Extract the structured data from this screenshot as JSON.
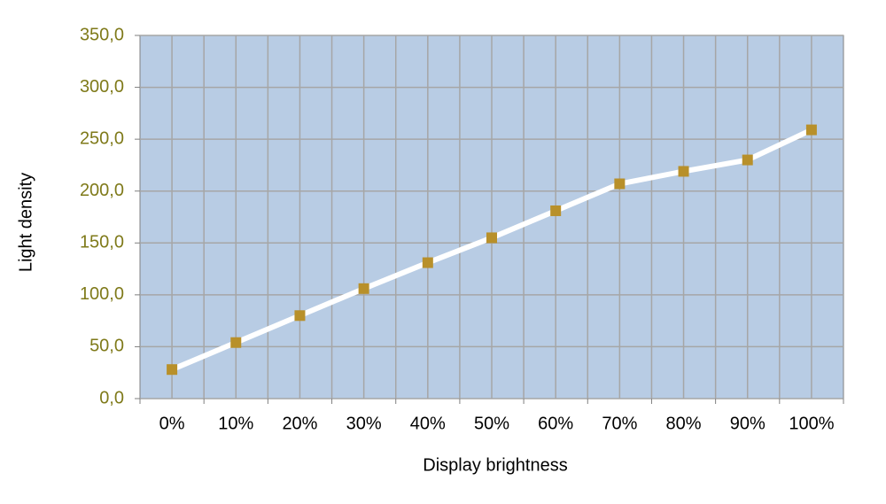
{
  "chart_data": {
    "type": "line",
    "x_label": "Display brightness",
    "y_label": "Light density",
    "categories": [
      "0%",
      "10%",
      "20%",
      "30%",
      "40%",
      "50%",
      "60%",
      "70%",
      "80%",
      "90%",
      "100%"
    ],
    "series": [
      {
        "color": "#ffffff",
        "marker_color": "#b8902a",
        "values": [
          28,
          54,
          80,
          106,
          131,
          155,
          181,
          207,
          219,
          230,
          259
        ]
      }
    ],
    "ylim": [
      0,
      350
    ],
    "yticks": [
      {
        "value": 0,
        "label": "0,0"
      },
      {
        "value": 50,
        "label": "50,0"
      },
      {
        "value": 100,
        "label": "100,0"
      },
      {
        "value": 150,
        "label": "150,0"
      },
      {
        "value": 200,
        "label": "200,0"
      },
      {
        "value": 250,
        "label": "250,0"
      },
      {
        "value": 300,
        "label": "300,0"
      },
      {
        "value": 350,
        "label": "350,0"
      }
    ],
    "grid": true
  }
}
